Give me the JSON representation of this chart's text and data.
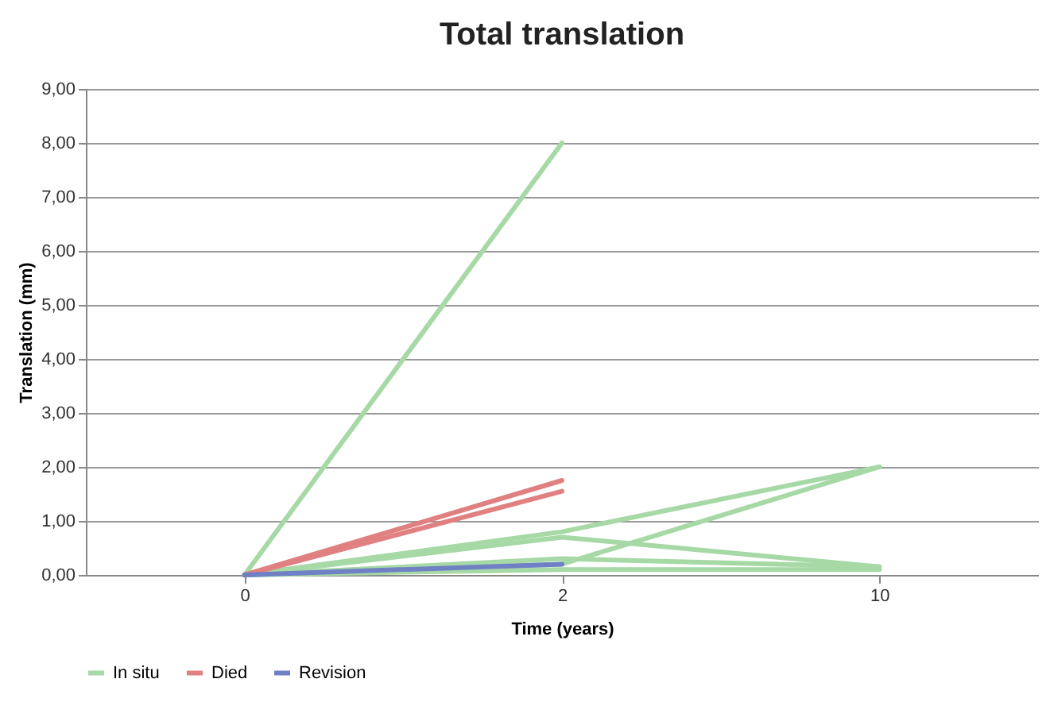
{
  "chart_data": {
    "type": "line",
    "title": "Total translation",
    "xlabel": "Time (years)",
    "ylabel": "Translation (mm)",
    "categories": [
      "0",
      "2",
      "10"
    ],
    "ylim": [
      0,
      9
    ],
    "yticks": [
      {
        "value": 0,
        "label": "0,00"
      },
      {
        "value": 1,
        "label": "1,00"
      },
      {
        "value": 2,
        "label": "2,00"
      },
      {
        "value": 3,
        "label": "3,00"
      },
      {
        "value": 4,
        "label": "4,00"
      },
      {
        "value": 5,
        "label": "5,00"
      },
      {
        "value": 6,
        "label": "6,00"
      },
      {
        "value": 7,
        "label": "7,00"
      },
      {
        "value": 8,
        "label": "8,00"
      },
      {
        "value": 9,
        "label": "9,00"
      }
    ],
    "grid": "y",
    "legend": "bottom",
    "marker": "none",
    "line_style": "solid",
    "series": [
      {
        "name": "In situ",
        "color": "#a6d9a6",
        "values": [
          0,
          8.0,
          null
        ]
      },
      {
        "color": "#a6d9a6",
        "values": [
          0,
          0.8,
          2.0
        ]
      },
      {
        "color": "#a6d9a6",
        "values": [
          0,
          0.2,
          2.0
        ]
      },
      {
        "color": "#a6d9a6",
        "values": [
          0,
          0.7,
          0.15
        ]
      },
      {
        "color": "#a6d9a6",
        "values": [
          0,
          0.3,
          0.15
        ]
      },
      {
        "color": "#a6d9a6",
        "values": [
          0,
          0.1,
          0.1
        ]
      },
      {
        "name": "Died",
        "color": "#e08080",
        "values": [
          0,
          1.75,
          null
        ]
      },
      {
        "color": "#e08080",
        "values": [
          0,
          1.55,
          null
        ]
      },
      {
        "name": "Revision",
        "color": "#6f80c4",
        "values": [
          0,
          0.2,
          null
        ]
      }
    ]
  }
}
